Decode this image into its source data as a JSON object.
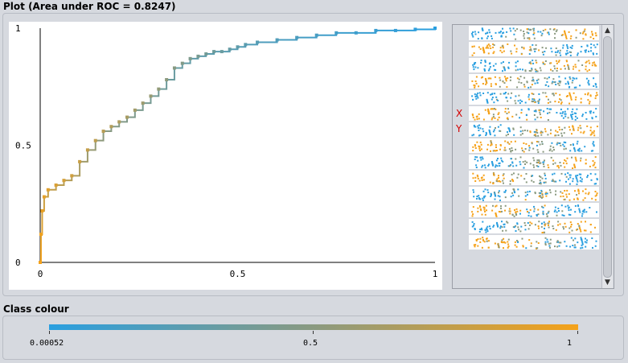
{
  "plot": {
    "title": "Plot (Area under ROC = 0.8247)",
    "x_ticks": [
      "0",
      "0.5",
      "1"
    ],
    "y_ticks": [
      "0",
      "0.5",
      "1"
    ]
  },
  "attribute_panel": {
    "x_marker": "X",
    "y_marker": "Y",
    "rows": 14
  },
  "class_colour": {
    "title": "Class colour",
    "labels": [
      "0.00052",
      "0.5",
      "1"
    ],
    "color_low": "#2a9fe0",
    "color_mid": "#8a9a80",
    "color_high": "#f5a21a"
  },
  "chart_data": {
    "type": "line",
    "xlim": [
      0,
      1
    ],
    "ylim": [
      0,
      1
    ],
    "x": [
      0,
      0.002,
      0.005,
      0.01,
      0.02,
      0.04,
      0.06,
      0.08,
      0.1,
      0.12,
      0.14,
      0.16,
      0.18,
      0.2,
      0.22,
      0.24,
      0.26,
      0.28,
      0.3,
      0.32,
      0.34,
      0.36,
      0.38,
      0.4,
      0.42,
      0.44,
      0.46,
      0.48,
      0.5,
      0.52,
      0.55,
      0.6,
      0.65,
      0.7,
      0.75,
      0.8,
      0.85,
      0.9,
      0.95,
      1.0
    ],
    "y": [
      0,
      0.12,
      0.22,
      0.28,
      0.31,
      0.33,
      0.35,
      0.37,
      0.43,
      0.48,
      0.52,
      0.56,
      0.58,
      0.6,
      0.62,
      0.65,
      0.68,
      0.71,
      0.74,
      0.78,
      0.83,
      0.85,
      0.87,
      0.88,
      0.89,
      0.9,
      0.9,
      0.91,
      0.92,
      0.93,
      0.94,
      0.95,
      0.96,
      0.97,
      0.98,
      0.98,
      0.99,
      0.99,
      0.995,
      1.0
    ]
  }
}
